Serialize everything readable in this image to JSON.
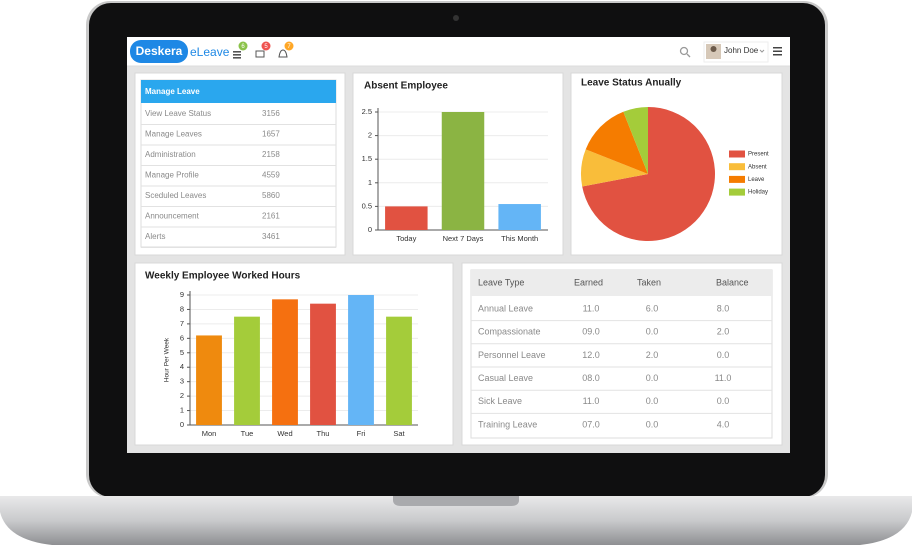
{
  "header": {
    "logo": "Deskera",
    "app": "eLeave",
    "badges": [
      6,
      5,
      7
    ],
    "user": "John Doe"
  },
  "manage_leave": {
    "title": "Manage Leave",
    "items": [
      {
        "label": "View Leave Status",
        "count": 3156
      },
      {
        "label": "Manage Leaves",
        "count": 1657
      },
      {
        "label": "Administration",
        "count": 2158
      },
      {
        "label": "Manage Profile",
        "count": 4559
      },
      {
        "label": "Sceduled Leaves",
        "count": 5860
      },
      {
        "label": "Announcement",
        "count": 2161
      },
      {
        "label": "Alerts",
        "count": 3461
      }
    ]
  },
  "chart_data": [
    {
      "type": "bar",
      "title": "Absent Employee",
      "categories": [
        "Today",
        "Next 7 Days",
        "This Month"
      ],
      "values": [
        0.5,
        2.5,
        0.55
      ],
      "colors": [
        "#e15241",
        "#8bb443",
        "#64b5f6"
      ],
      "ylim": [
        0,
        2.5
      ],
      "yticks": [
        0,
        0.5,
        1,
        1.5,
        2,
        2.5
      ],
      "grid": true
    },
    {
      "type": "pie",
      "title": "Leave Status Anually",
      "categories": [
        "Present",
        "Absent",
        "Leave",
        "Holiday"
      ],
      "values": [
        72,
        9,
        13,
        6
      ],
      "colors": [
        "#e15241",
        "#f9bd3a",
        "#f57c00",
        "#a4cc3a"
      ],
      "legend": "right"
    },
    {
      "type": "bar",
      "title": "Weekly Employee Worked Hours",
      "y_label": "Hour Per Week",
      "categories": [
        "Mon",
        "Tue",
        "Wed",
        "Thu",
        "Fri",
        "Sat"
      ],
      "values": [
        6.2,
        7.5,
        8.7,
        8.4,
        9.0,
        7.5
      ],
      "colors": [
        "#ef8a0e",
        "#a4cc3a",
        "#f57010",
        "#e15241",
        "#64b5f6",
        "#a4cc3a"
      ],
      "ylim": [
        0,
        9
      ],
      "yticks": [
        0,
        1,
        2,
        3,
        4,
        5,
        6,
        7,
        8,
        9
      ],
      "grid": true
    }
  ],
  "leave_table": {
    "columns": [
      "Leave Type",
      "Earned",
      "Taken",
      "Balance"
    ],
    "rows": [
      [
        "Annual Leave",
        "11.0",
        "6.0",
        "8.0"
      ],
      [
        "Compassionate",
        "09.0",
        "0.0",
        "2.0"
      ],
      [
        "Personnel Leave",
        "12.0",
        "2.0",
        "0.0"
      ],
      [
        "Casual Leave",
        "08.0",
        "0.0",
        "11.0"
      ],
      [
        "Sick Leave",
        "11.0",
        "0.0",
        "0.0"
      ],
      [
        "Training Leave",
        "07.0",
        "0.0",
        "4.0"
      ]
    ]
  }
}
